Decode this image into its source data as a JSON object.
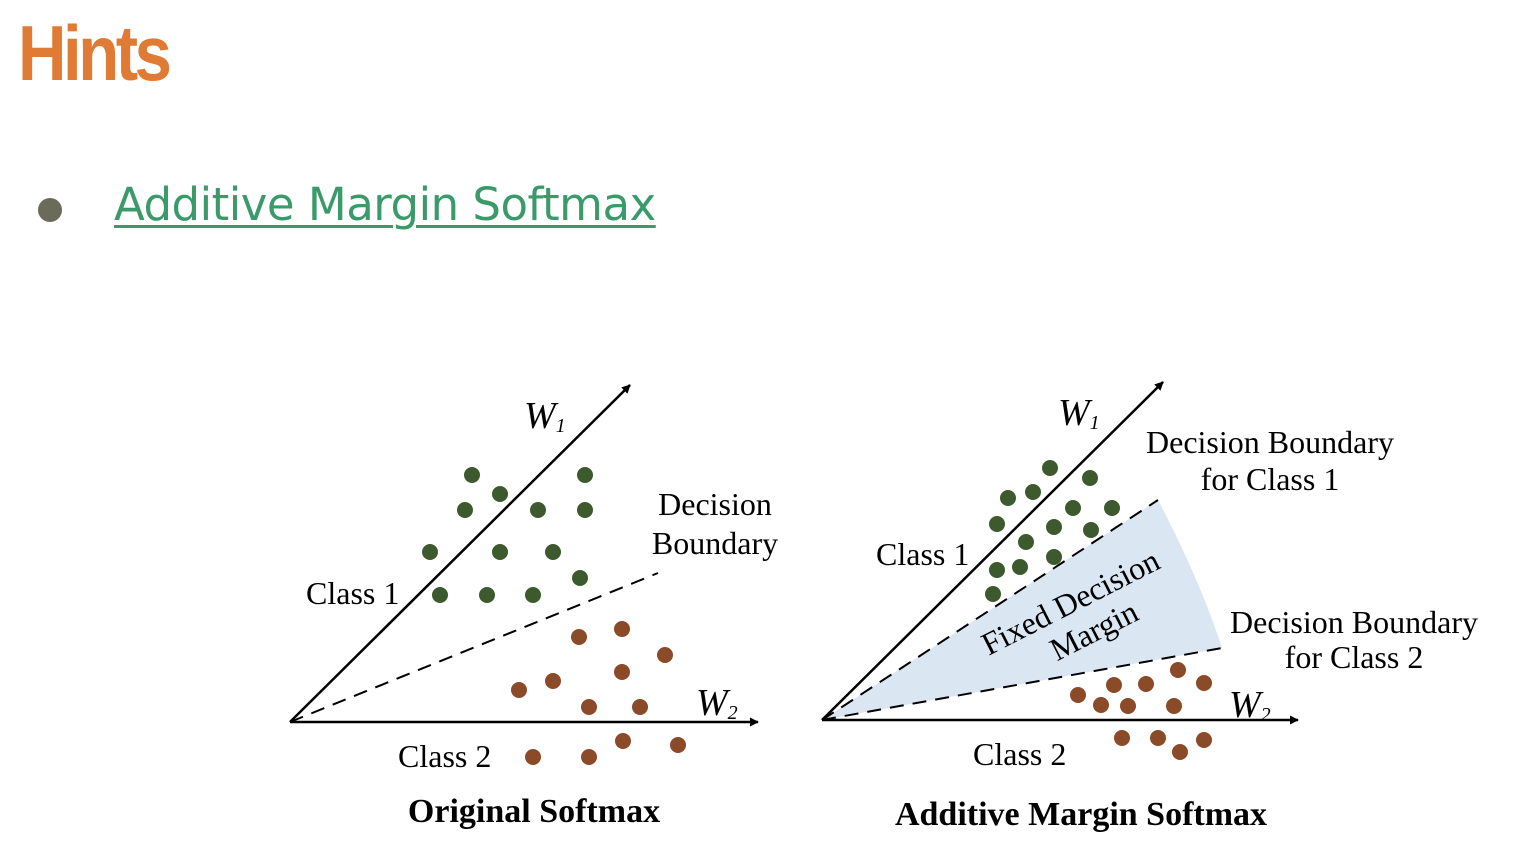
{
  "page": {
    "title": "Hints",
    "bullet_link": "Additive Margin Softmax"
  },
  "colors": {
    "title": "#e07b35",
    "link": "#3a9a6a",
    "class1_points": "#3d5a2e",
    "class2_points": "#8b4a28",
    "margin_fill": "#dbe6f3"
  },
  "diagrams": [
    {
      "caption": "Original Softmax",
      "axis_w1": "W",
      "axis_w1_sub": "1",
      "axis_w2": "W",
      "axis_w2_sub": "2",
      "class1_label": "Class 1",
      "class2_label": "Class 2",
      "boundary_line1": "Decision",
      "boundary_line2": "Boundary"
    },
    {
      "caption": "Additive Margin Softmax",
      "axis_w1": "W",
      "axis_w1_sub": "1",
      "axis_w2": "W",
      "axis_w2_sub": "2",
      "class1_label": "Class 1",
      "class2_label": "Class 2",
      "margin_line1": "Fixed Decision",
      "margin_line2": "Margin",
      "boundary1_line1": "Decision Boundary",
      "boundary1_line2": "for Class 1",
      "boundary2_line1": "Decision Boundary",
      "boundary2_line2": "for Class 2"
    }
  ]
}
